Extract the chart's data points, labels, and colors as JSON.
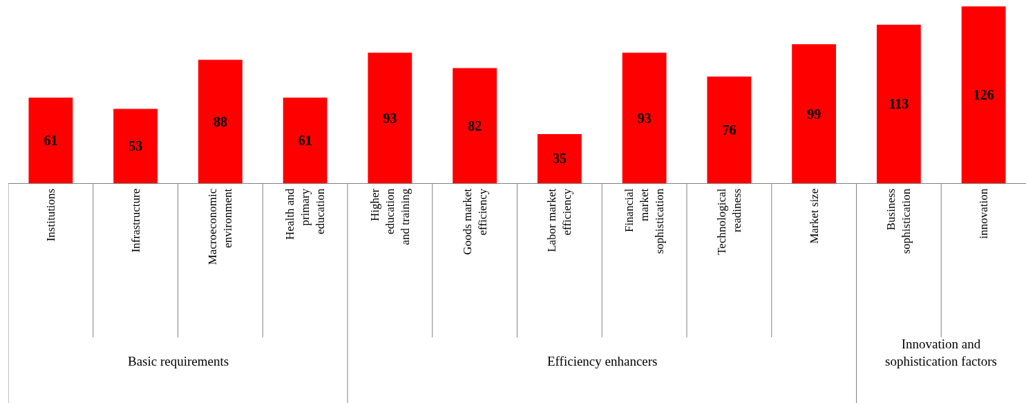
{
  "chart_data": {
    "type": "bar",
    "categories": [
      "Institutions",
      "Infrastructure",
      "Macroeconomic environment",
      "Health and primary education",
      "Higher education and training",
      "Goods market efficiency",
      "Labor market efficiency",
      "Financial market sophistication",
      "Technological readiness",
      "Market size",
      "Business sophistication",
      "innovation"
    ],
    "values": [
      61,
      53,
      88,
      61,
      93,
      82,
      35,
      93,
      76,
      99,
      113,
      126
    ],
    "color": "#ff0000",
    "data_labels": true,
    "tick_labels": "x",
    "legend": false,
    "annotations": [
      "Basic requirements",
      "Efficiency enhancers",
      "Innovation and sophistication factors"
    ]
  }
}
